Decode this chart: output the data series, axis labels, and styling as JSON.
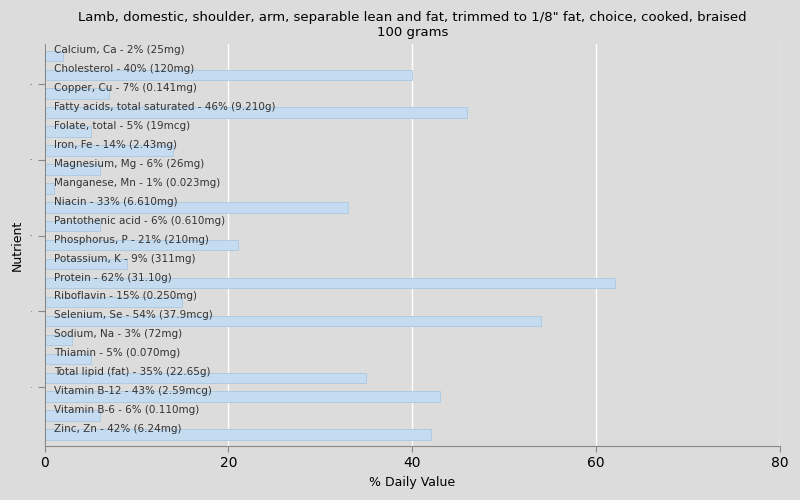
{
  "title": "Lamb, domestic, shoulder, arm, separable lean and fat, trimmed to 1/8\" fat, choice, cooked, braised\n100 grams",
  "xlabel": "% Daily Value",
  "ylabel": "Nutrient",
  "background_color": "#dcdcdc",
  "plot_bg_color": "#dcdcdc",
  "bar_color": "#c5dcf0",
  "bar_edge_color": "#a0c4e0",
  "xlim": [
    0,
    80
  ],
  "xticks": [
    0,
    20,
    40,
    60,
    80
  ],
  "text_color": "#333333",
  "label_fontsize": 7.5,
  "title_fontsize": 9.5,
  "axis_label_fontsize": 9,
  "nutrients": [
    {
      "label": "Calcium, Ca - 2% (25mg)",
      "value": 2
    },
    {
      "label": "Cholesterol - 40% (120mg)",
      "value": 40
    },
    {
      "label": "Copper, Cu - 7% (0.141mg)",
      "value": 7
    },
    {
      "label": "Fatty acids, total saturated - 46% (9.210g)",
      "value": 46
    },
    {
      "label": "Folate, total - 5% (19mcg)",
      "value": 5
    },
    {
      "label": "Iron, Fe - 14% (2.43mg)",
      "value": 14
    },
    {
      "label": "Magnesium, Mg - 6% (26mg)",
      "value": 6
    },
    {
      "label": "Manganese, Mn - 1% (0.023mg)",
      "value": 1
    },
    {
      "label": "Niacin - 33% (6.610mg)",
      "value": 33
    },
    {
      "label": "Pantothenic acid - 6% (0.610mg)",
      "value": 6
    },
    {
      "label": "Phosphorus, P - 21% (210mg)",
      "value": 21
    },
    {
      "label": "Potassium, K - 9% (311mg)",
      "value": 9
    },
    {
      "label": "Protein - 62% (31.10g)",
      "value": 62
    },
    {
      "label": "Riboflavin - 15% (0.250mg)",
      "value": 15
    },
    {
      "label": "Selenium, Se - 54% (37.9mcg)",
      "value": 54
    },
    {
      "label": "Sodium, Na - 3% (72mg)",
      "value": 3
    },
    {
      "label": "Thiamin - 5% (0.070mg)",
      "value": 5
    },
    {
      "label": "Total lipid (fat) - 35% (22.65g)",
      "value": 35
    },
    {
      "label": "Vitamin B-12 - 43% (2.59mcg)",
      "value": 43
    },
    {
      "label": "Vitamin B-6 - 6% (0.110mg)",
      "value": 6
    },
    {
      "label": "Zinc, Zn - 42% (6.24mg)",
      "value": 42
    }
  ]
}
